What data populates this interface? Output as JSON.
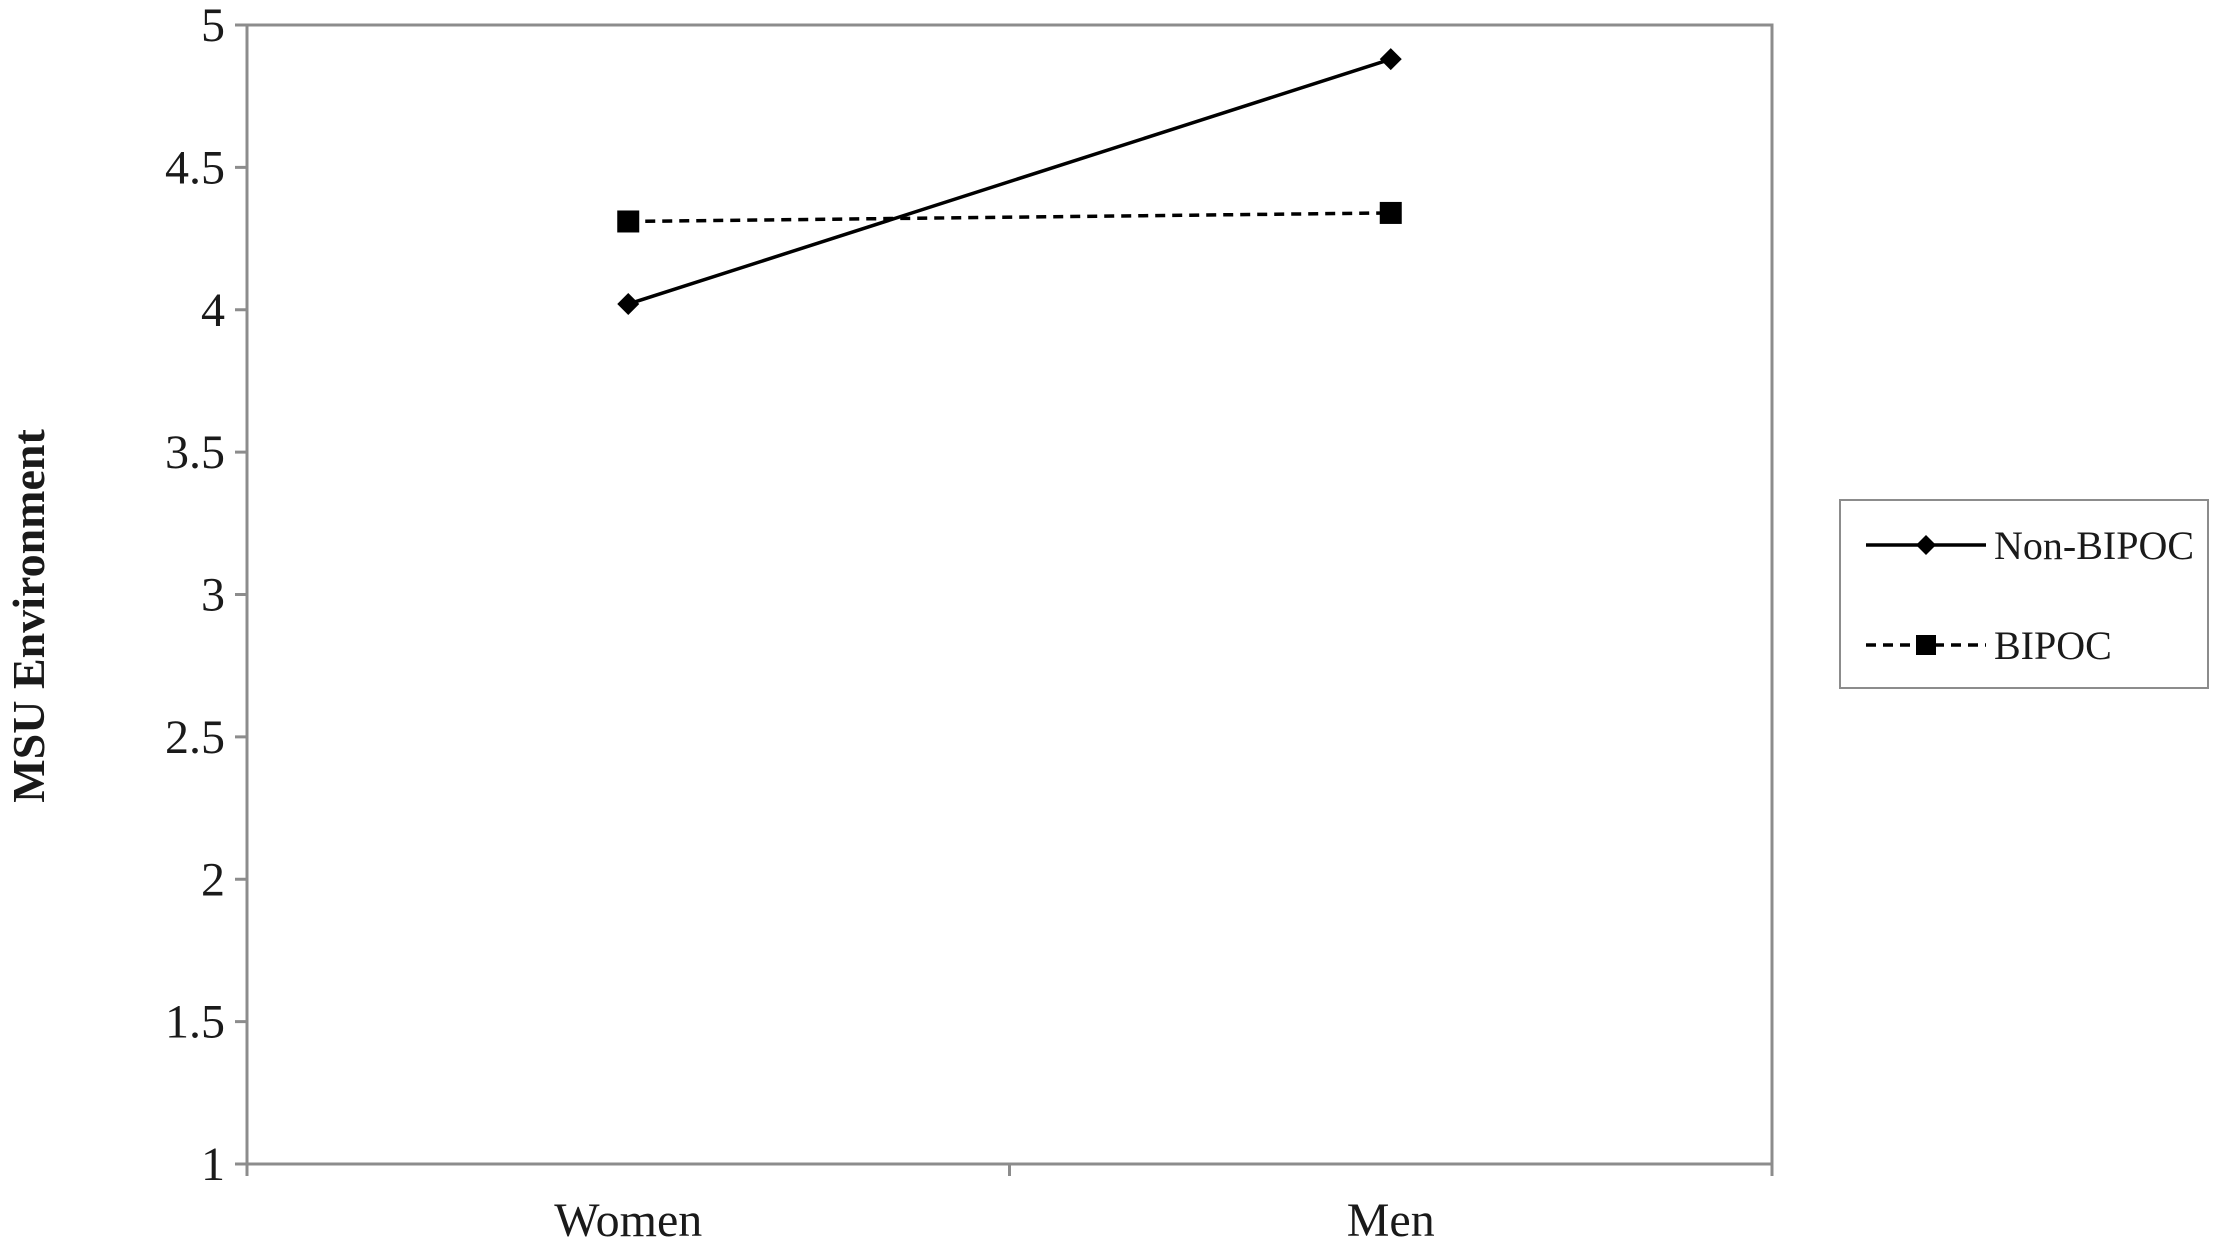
{
  "chart_data": {
    "type": "line",
    "title": "",
    "xlabel": "",
    "ylabel": "MSU Environment",
    "categories": [
      "Women",
      "Men"
    ],
    "ylim": [
      1,
      5
    ],
    "yticks": [
      "1",
      "1.5",
      "2",
      "2.5",
      "3",
      "3.5",
      "4",
      "4.5",
      "5"
    ],
    "grid": false,
    "legend": "right",
    "series": [
      {
        "name": "Non-BIPOC",
        "values": [
          4.02,
          4.88
        ],
        "line_style": "solid",
        "marker": "diamond",
        "color": "#000000"
      },
      {
        "name": "BIPOC",
        "values": [
          4.31,
          4.34
        ],
        "line_style": "dashed",
        "marker": "square",
        "color": "#000000"
      }
    ]
  }
}
